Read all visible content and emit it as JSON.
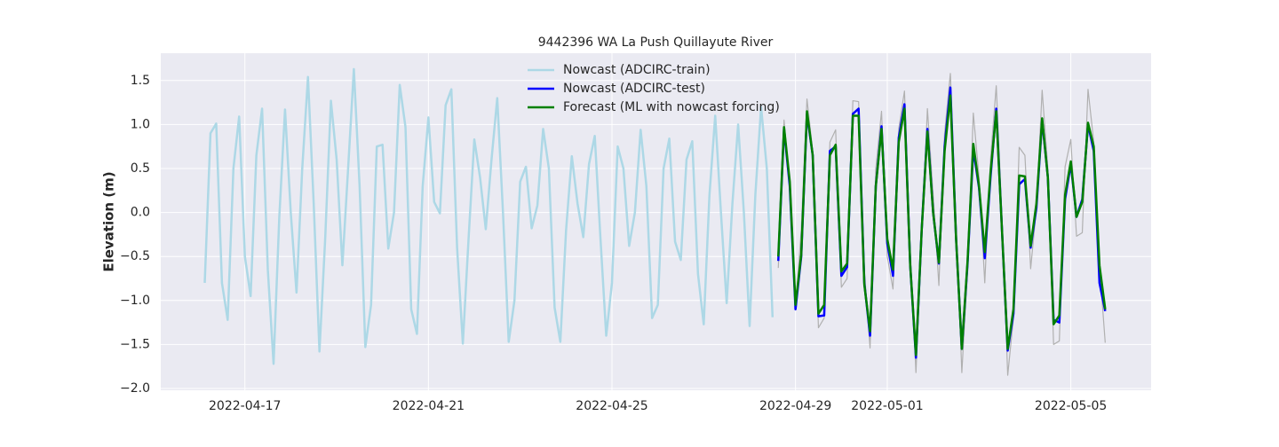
{
  "chart_data": {
    "type": "line",
    "title": "9442396 WA La Push Quillayute River",
    "y_label": "Elevation (m)",
    "xlim": [
      "2022-04-15 04:00",
      "2022-05-06 18:00"
    ],
    "ylim": [
      -2.02,
      1.81
    ],
    "xticks": [
      "2022-04-17",
      "2022-04-21",
      "2022-04-25",
      "2022-04-29",
      "2022-05-01",
      "2022-05-05"
    ],
    "yticks": [
      {
        "value": -2,
        "label": "−2.0"
      },
      {
        "value": -1.5,
        "label": "−1.5"
      },
      {
        "value": -1,
        "label": "−1.0"
      },
      {
        "value": -0.5,
        "label": "−0.5"
      },
      {
        "value": 0,
        "label": "0.0"
      },
      {
        "value": 0.5,
        "label": "0.5"
      },
      {
        "value": 1,
        "label": "1.0"
      },
      {
        "value": 1.5,
        "label": "1.5"
      }
    ],
    "grid": true,
    "legend": "upper center",
    "series": [
      {
        "name": "Nowcast (ADCIRC-train)",
        "color": "#add8e6",
        "x": [
          "2022-04-16 03:00",
          "2022-04-16 06:00",
          "2022-04-16 09:00",
          "2022-04-16 12:00",
          "2022-04-16 15:00",
          "2022-04-16 18:00",
          "2022-04-16 21:00",
          "2022-04-17 00:00",
          "2022-04-17 03:00",
          "2022-04-17 06:00",
          "2022-04-17 09:00",
          "2022-04-17 12:00",
          "2022-04-17 15:00",
          "2022-04-17 18:00",
          "2022-04-17 21:00",
          "2022-04-18 00:00",
          "2022-04-18 03:00",
          "2022-04-18 06:00",
          "2022-04-18 09:00",
          "2022-04-18 12:00",
          "2022-04-18 15:00",
          "2022-04-18 18:00",
          "2022-04-18 21:00",
          "2022-04-19 00:00",
          "2022-04-19 03:00",
          "2022-04-19 06:00",
          "2022-04-19 09:00",
          "2022-04-19 12:00",
          "2022-04-19 15:00",
          "2022-04-19 18:00",
          "2022-04-19 21:00",
          "2022-04-20 00:00",
          "2022-04-20 03:00",
          "2022-04-20 06:00",
          "2022-04-20 09:00",
          "2022-04-20 12:00",
          "2022-04-20 15:00",
          "2022-04-20 18:00",
          "2022-04-20 21:00",
          "2022-04-21 00:00",
          "2022-04-21 03:00",
          "2022-04-21 06:00",
          "2022-04-21 09:00",
          "2022-04-21 12:00",
          "2022-04-21 15:00",
          "2022-04-21 18:00",
          "2022-04-21 21:00",
          "2022-04-22 00:00",
          "2022-04-22 03:00",
          "2022-04-22 06:00",
          "2022-04-22 09:00",
          "2022-04-22 12:00",
          "2022-04-22 15:00",
          "2022-04-22 18:00",
          "2022-04-22 21:00",
          "2022-04-23 00:00",
          "2022-04-23 03:00",
          "2022-04-23 06:00",
          "2022-04-23 09:00",
          "2022-04-23 12:00",
          "2022-04-23 15:00",
          "2022-04-23 18:00",
          "2022-04-23 21:00",
          "2022-04-24 00:00",
          "2022-04-24 03:00",
          "2022-04-24 06:00",
          "2022-04-24 09:00",
          "2022-04-24 12:00",
          "2022-04-24 15:00",
          "2022-04-24 18:00",
          "2022-04-24 21:00",
          "2022-04-25 00:00",
          "2022-04-25 03:00",
          "2022-04-25 06:00",
          "2022-04-25 09:00",
          "2022-04-25 12:00",
          "2022-04-25 15:00",
          "2022-04-25 18:00",
          "2022-04-25 21:00",
          "2022-04-26 00:00",
          "2022-04-26 03:00",
          "2022-04-26 06:00",
          "2022-04-26 09:00",
          "2022-04-26 12:00",
          "2022-04-26 15:00",
          "2022-04-26 18:00",
          "2022-04-26 21:00",
          "2022-04-27 00:00",
          "2022-04-27 03:00",
          "2022-04-27 06:00",
          "2022-04-27 09:00",
          "2022-04-27 12:00",
          "2022-04-27 15:00",
          "2022-04-27 18:00",
          "2022-04-27 21:00",
          "2022-04-28 00:00",
          "2022-04-28 03:00",
          "2022-04-28 06:00",
          "2022-04-28 09:00",
          "2022-04-28 12:00"
        ],
        "values": [
          -0.8,
          0.9,
          1.01,
          -0.8,
          -1.22,
          0.5,
          1.09,
          -0.5,
          -0.95,
          0.65,
          1.18,
          -0.65,
          -1.72,
          -0.05,
          1.17,
          0.0,
          -0.91,
          0.5,
          1.54,
          0.1,
          -1.58,
          -0.3,
          1.27,
          0.6,
          -0.6,
          0.5,
          1.63,
          0.3,
          -1.53,
          -1.05,
          0.75,
          0.77,
          -0.41,
          0.0,
          1.45,
          0.97,
          -1.1,
          -1.38,
          0.3,
          1.08,
          0.12,
          -0.01,
          1.22,
          1.4,
          -0.4,
          -1.49,
          -0.3,
          0.83,
          0.4,
          -0.19,
          0.6,
          1.3,
          0.0,
          -1.47,
          -1.0,
          0.35,
          0.52,
          -0.18,
          0.08,
          0.95,
          0.5,
          -1.08,
          -1.47,
          -0.2,
          0.64,
          0.1,
          -0.28,
          0.55,
          0.87,
          -0.3,
          -1.4,
          -0.8,
          0.75,
          0.5,
          -0.38,
          0.0,
          0.94,
          0.3,
          -1.2,
          -1.05,
          0.5,
          0.84,
          -0.33,
          -0.54,
          0.6,
          0.81,
          -0.7,
          -1.27,
          0.2,
          1.1,
          0.0,
          -1.03,
          0.1,
          1.0,
          0.0,
          -1.29,
          0.2,
          1.2,
          0.5,
          -1.19
        ]
      },
      {
        "color": "#b0b0b0",
        "x": [
          "2022-04-28 15:00",
          "2022-04-28 18:00",
          "2022-04-28 21:00",
          "2022-04-29 00:00",
          "2022-04-29 03:00",
          "2022-04-29 06:00",
          "2022-04-29 09:00",
          "2022-04-29 12:00",
          "2022-04-29 15:00",
          "2022-04-29 18:00",
          "2022-04-29 21:00",
          "2022-04-30 00:00",
          "2022-04-30 03:00",
          "2022-04-30 06:00",
          "2022-04-30 09:00",
          "2022-04-30 12:00",
          "2022-04-30 15:00",
          "2022-04-30 18:00",
          "2022-04-30 21:00",
          "2022-05-01 00:00",
          "2022-05-01 03:00",
          "2022-05-01 06:00",
          "2022-05-01 09:00",
          "2022-05-01 12:00",
          "2022-05-01 15:00",
          "2022-05-01 18:00",
          "2022-05-01 21:00",
          "2022-05-02 00:00",
          "2022-05-02 03:00",
          "2022-05-02 06:00",
          "2022-05-02 09:00",
          "2022-05-02 12:00",
          "2022-05-02 15:00",
          "2022-05-02 18:00",
          "2022-05-02 21:00",
          "2022-05-03 00:00",
          "2022-05-03 03:00",
          "2022-05-03 06:00",
          "2022-05-03 09:00",
          "2022-05-03 12:00",
          "2022-05-03 15:00",
          "2022-05-03 18:00",
          "2022-05-03 21:00",
          "2022-05-04 00:00",
          "2022-05-04 03:00",
          "2022-05-04 06:00",
          "2022-05-04 09:00",
          "2022-05-04 12:00",
          "2022-05-04 15:00",
          "2022-05-04 18:00",
          "2022-05-04 21:00",
          "2022-05-05 00:00",
          "2022-05-05 03:00",
          "2022-05-05 06:00",
          "2022-05-05 09:00",
          "2022-05-05 12:00",
          "2022-05-05 15:00",
          "2022-05-05 18:00"
        ],
        "values": [
          -0.63,
          1.05,
          0.3,
          -1.1,
          -0.2,
          1.29,
          0.7,
          -1.31,
          -1.2,
          0.8,
          0.94,
          -0.85,
          -0.75,
          1.27,
          1.26,
          -0.65,
          -1.54,
          0.5,
          1.15,
          -0.5,
          -0.87,
          0.95,
          1.38,
          -0.4,
          -1.82,
          -0.3,
          1.18,
          0.2,
          -0.83,
          0.9,
          1.58,
          -0.1,
          -1.82,
          -0.65,
          1.13,
          0.4,
          -0.8,
          0.6,
          1.44,
          -0.05,
          -1.85,
          -1.2,
          0.74,
          0.65,
          -0.64,
          0.05,
          1.39,
          0.5,
          -1.5,
          -1.46,
          0.52,
          0.83,
          -0.27,
          -0.23,
          1.4,
          0.8,
          -0.6,
          -1.48
        ]
      },
      {
        "name": "Nowcast (ADCIRC-test)",
        "color": "#0000ff",
        "x": [
          "2022-04-28 15:00",
          "2022-04-28 18:00",
          "2022-04-28 21:00",
          "2022-04-29 00:00",
          "2022-04-29 03:00",
          "2022-04-29 06:00",
          "2022-04-29 09:00",
          "2022-04-29 12:00",
          "2022-04-29 15:00",
          "2022-04-29 18:00",
          "2022-04-29 21:00",
          "2022-04-30 00:00",
          "2022-04-30 03:00",
          "2022-04-30 06:00",
          "2022-04-30 09:00",
          "2022-04-30 12:00",
          "2022-04-30 15:00",
          "2022-04-30 18:00",
          "2022-04-30 21:00",
          "2022-05-01 00:00",
          "2022-05-01 03:00",
          "2022-05-01 06:00",
          "2022-05-01 09:00",
          "2022-05-01 12:00",
          "2022-05-01 15:00",
          "2022-05-01 18:00",
          "2022-05-01 21:00",
          "2022-05-02 00:00",
          "2022-05-02 03:00",
          "2022-05-02 06:00",
          "2022-05-02 09:00",
          "2022-05-02 12:00",
          "2022-05-02 15:00",
          "2022-05-02 18:00",
          "2022-05-02 21:00",
          "2022-05-03 00:00",
          "2022-05-03 03:00",
          "2022-05-03 06:00",
          "2022-05-03 09:00",
          "2022-05-03 12:00",
          "2022-05-03 15:00",
          "2022-05-03 18:00",
          "2022-05-03 21:00",
          "2022-05-04 00:00",
          "2022-05-04 03:00",
          "2022-05-04 06:00",
          "2022-05-04 09:00",
          "2022-05-04 12:00",
          "2022-05-04 15:00",
          "2022-05-04 18:00",
          "2022-05-04 21:00",
          "2022-05-05 00:00",
          "2022-05-05 03:00",
          "2022-05-05 06:00",
          "2022-05-05 09:00",
          "2022-05-05 12:00",
          "2022-05-05 15:00",
          "2022-05-05 18:00"
        ],
        "values": [
          -0.55,
          0.95,
          0.3,
          -1.1,
          -0.5,
          1.12,
          0.65,
          -1.18,
          -1.17,
          0.7,
          0.75,
          -0.72,
          -0.62,
          1.12,
          1.18,
          -0.8,
          -1.4,
          0.3,
          0.98,
          -0.35,
          -0.72,
          0.85,
          1.23,
          -0.6,
          -1.65,
          -0.2,
          0.95,
          0.0,
          -0.58,
          0.75,
          1.42,
          -0.3,
          -1.55,
          -0.58,
          0.72,
          0.28,
          -0.52,
          0.4,
          1.18,
          -0.2,
          -1.57,
          -1.15,
          0.32,
          0.38,
          -0.4,
          0.05,
          1.05,
          0.4,
          -1.22,
          -1.25,
          0.15,
          0.55,
          -0.05,
          0.15,
          1.0,
          0.7,
          -0.8,
          -1.12
        ]
      },
      {
        "name": "Forecast (ML with nowcast forcing)",
        "color": "#008000",
        "x": [
          "2022-04-28 15:00",
          "2022-04-28 18:00",
          "2022-04-28 21:00",
          "2022-04-29 00:00",
          "2022-04-29 03:00",
          "2022-04-29 06:00",
          "2022-04-29 09:00",
          "2022-04-29 12:00",
          "2022-04-29 15:00",
          "2022-04-29 18:00",
          "2022-04-29 21:00",
          "2022-04-30 00:00",
          "2022-04-30 03:00",
          "2022-04-30 06:00",
          "2022-04-30 09:00",
          "2022-04-30 12:00",
          "2022-04-30 15:00",
          "2022-04-30 18:00",
          "2022-04-30 21:00",
          "2022-05-01 00:00",
          "2022-05-01 03:00",
          "2022-05-01 06:00",
          "2022-05-01 09:00",
          "2022-05-01 12:00",
          "2022-05-01 15:00",
          "2022-05-01 18:00",
          "2022-05-01 21:00",
          "2022-05-02 00:00",
          "2022-05-02 03:00",
          "2022-05-02 06:00",
          "2022-05-02 09:00",
          "2022-05-02 12:00",
          "2022-05-02 15:00",
          "2022-05-02 18:00",
          "2022-05-02 21:00",
          "2022-05-03 00:00",
          "2022-05-03 03:00",
          "2022-05-03 06:00",
          "2022-05-03 09:00",
          "2022-05-03 12:00",
          "2022-05-03 15:00",
          "2022-05-03 18:00",
          "2022-05-03 21:00",
          "2022-05-04 00:00",
          "2022-05-04 03:00",
          "2022-05-04 06:00",
          "2022-05-04 09:00",
          "2022-05-04 12:00",
          "2022-05-04 15:00",
          "2022-05-04 18:00",
          "2022-05-04 21:00",
          "2022-05-05 00:00",
          "2022-05-05 03:00",
          "2022-05-05 06:00",
          "2022-05-05 09:00",
          "2022-05-05 12:00",
          "2022-05-05 15:00",
          "2022-05-05 18:00"
        ],
        "values": [
          -0.5,
          0.97,
          0.35,
          -1.05,
          -0.48,
          1.15,
          0.65,
          -1.15,
          -1.05,
          0.65,
          0.77,
          -0.67,
          -0.58,
          1.1,
          1.1,
          -0.82,
          -1.35,
          0.3,
          0.95,
          -0.3,
          -0.65,
          0.8,
          1.18,
          -0.6,
          -1.62,
          -0.2,
          0.92,
          0.0,
          -0.57,
          0.7,
          1.33,
          -0.3,
          -1.55,
          -0.55,
          0.78,
          0.3,
          -0.45,
          0.45,
          1.15,
          -0.2,
          -1.55,
          -1.1,
          0.42,
          0.41,
          -0.38,
          0.1,
          1.07,
          0.4,
          -1.27,
          -1.17,
          0.2,
          0.58,
          -0.05,
          0.12,
          1.02,
          0.75,
          -0.6,
          -1.1
        ]
      }
    ]
  }
}
